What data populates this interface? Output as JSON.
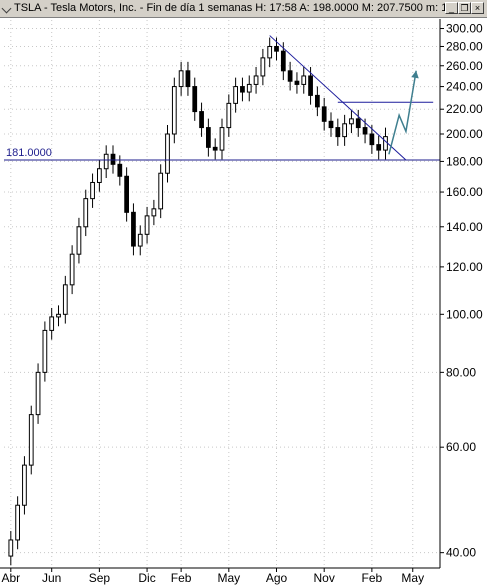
{
  "window": {
    "title": "TSLA - Tesla Motors, Inc. - Fin de día 1 semanas H: 17:58  A: 198.0000  M: 207.7500  m: 1",
    "buttons": {
      "minimize": "_",
      "restore": "❐",
      "close": "×"
    }
  },
  "colors": {
    "candle": "#000000",
    "level_line": "#1c1c8c",
    "trend_line": "#1c1c9c",
    "projection_arrow": "#3f7f8f",
    "grid": "#c8c8c8"
  },
  "chart_data": {
    "type": "candlestick",
    "symbol": "TSLA",
    "timeframe": "1 semanas",
    "y_scale": "log",
    "ylim": [
      38,
      310
    ],
    "yticks": [
      40,
      60,
      80,
      100,
      120,
      140,
      160,
      180,
      200,
      220,
      240,
      260,
      280,
      300
    ],
    "ytick_labels": [
      "40.00",
      "60.00",
      "80.00",
      "100.00",
      "120.00",
      "140.00",
      "160.00",
      "180.00",
      "200.00",
      "220.00",
      "240.00",
      "260.00",
      "280.00",
      "300.00"
    ],
    "x_range_weeks": [
      -1,
      63
    ],
    "xticks": [
      {
        "label": "Abr",
        "week": 0
      },
      {
        "label": "Jun",
        "week": 6
      },
      {
        "label": "Sep",
        "week": 13
      },
      {
        "label": "Dic",
        "week": 20
      },
      {
        "label": "Feb",
        "week": 25
      },
      {
        "label": "May",
        "week": 32
      },
      {
        "label": "Ago",
        "week": 39
      },
      {
        "label": "Nov",
        "week": 46
      },
      {
        "label": "Feb",
        "week": 53
      },
      {
        "label": "May",
        "week": 59
      }
    ],
    "close": [
      42,
      48,
      56,
      68,
      80,
      94,
      99,
      100,
      112,
      126,
      140,
      156,
      166,
      175,
      185,
      178,
      170,
      148,
      130,
      136,
      146,
      150,
      172,
      200,
      240,
      255,
      240,
      218,
      205,
      190,
      188,
      205,
      225,
      240,
      235,
      242,
      250,
      268,
      280,
      275,
      255,
      245,
      242,
      250,
      232,
      222,
      210,
      205,
      198,
      208,
      212,
      205,
      200,
      192,
      188,
      198
    ],
    "level_line": {
      "value": 181.0,
      "label": "181.0000"
    },
    "trend_line": {
      "start": {
        "week": 38,
        "price": 292
      },
      "end": {
        "week": 58,
        "price": 181
      }
    },
    "resistance_line": {
      "week_start": 48,
      "week_end": 62,
      "price": 226
    },
    "projection_arrow": [
      {
        "week": 55.5,
        "price": 185
      },
      {
        "week": 57,
        "price": 215
      },
      {
        "week": 58,
        "price": 202
      },
      {
        "week": 59.5,
        "price": 255
      }
    ],
    "grid": true
  }
}
